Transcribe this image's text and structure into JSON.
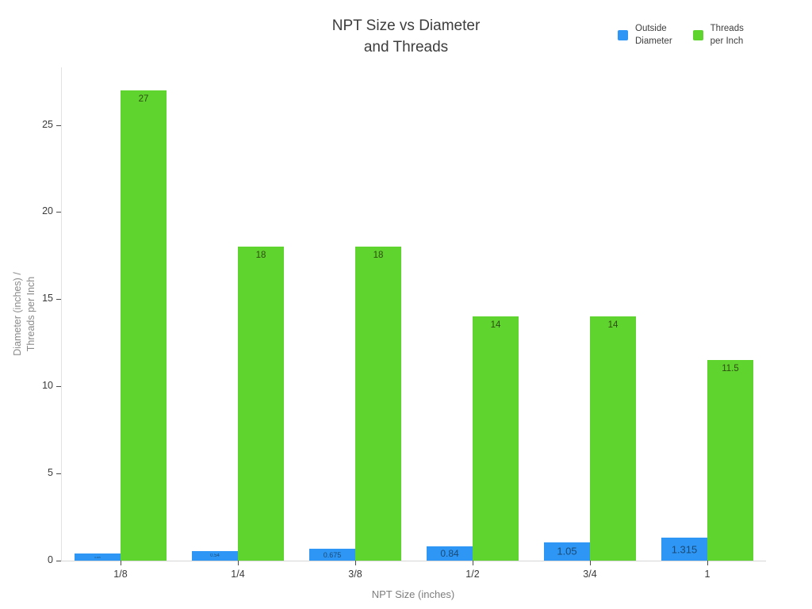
{
  "title": {
    "line1": "NPT Size vs Diameter",
    "line2": "and Threads"
  },
  "legend": [
    {
      "line1": "Outside",
      "line2": "Diameter",
      "color": "#2E96F5"
    },
    {
      "line1": "Threads",
      "line2": "per Inch",
      "color": "#5FD32E"
    }
  ],
  "axes": {
    "xtitle": "NPT Size (inches)",
    "ytitle_line1": "Diameter (inches) /",
    "ytitle_line2": "Threads per Inch"
  },
  "chart_data": {
    "type": "bar",
    "title": "NPT Size vs Diameter and Threads",
    "xlabel": "NPT Size (inches)",
    "ylabel": "Diameter (inches) / Threads per Inch",
    "categories": [
      "1/8",
      "1/4",
      "3/8",
      "1/2",
      "3/4",
      "1"
    ],
    "series": [
      {
        "name": "Outside Diameter",
        "color": "#2E96F5",
        "label_color": "#1b4a74",
        "values": [
          0.405,
          0.54,
          0.675,
          0.84,
          1.05,
          1.315
        ],
        "labels": [
          "0.405",
          "0.54",
          "0.675",
          "0.84",
          "1.05",
          "1.315"
        ]
      },
      {
        "name": "Threads per Inch",
        "color": "#5FD32E",
        "label_color": "#2e4d12",
        "values": [
          27,
          18,
          18,
          14,
          14,
          11.5
        ],
        "labels": [
          "27",
          "18",
          "18",
          "14",
          "14",
          "11.5"
        ]
      }
    ],
    "yticks": [
      0,
      5,
      10,
      15,
      20,
      25
    ],
    "ylim": [
      0,
      28.3
    ],
    "grid": false,
    "legend_position": "top-right",
    "bar_mode": "grouped"
  }
}
